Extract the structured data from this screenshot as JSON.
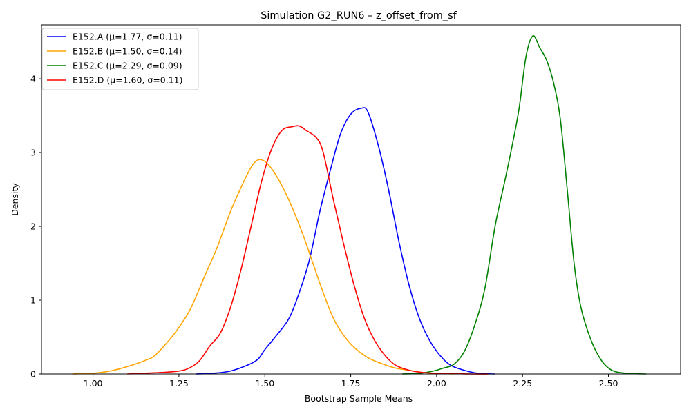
{
  "chart_data": {
    "type": "line",
    "title": "Simulation G2_RUN6 – z_offset_from_sf",
    "xlabel": "Bootstrap Sample Means",
    "ylabel": "Density",
    "xlim": [
      0.85,
      2.71
    ],
    "ylim": [
      0,
      4.73
    ],
    "xticks": [
      1.0,
      1.25,
      1.5,
      1.75,
      2.0,
      2.25,
      2.5
    ],
    "xtick_labels": [
      "1.00",
      "1.25",
      "1.50",
      "1.75",
      "2.00",
      "2.25",
      "2.50"
    ],
    "yticks": [
      0,
      1,
      2,
      3,
      4
    ],
    "ytick_labels": [
      "0",
      "1",
      "2",
      "3",
      "4"
    ],
    "grid": false,
    "legend_position": "top-left",
    "series": [
      {
        "name": "E152.A (μ=1.77, σ=0.11)",
        "color": "#0000ff",
        "x": [
          1.3,
          1.35,
          1.4,
          1.45,
          1.48,
          1.5,
          1.53,
          1.57,
          1.6,
          1.63,
          1.66,
          1.69,
          1.72,
          1.75,
          1.78,
          1.8,
          1.83,
          1.86,
          1.89,
          1.92,
          1.95,
          1.98,
          2.01,
          2.04,
          2.08,
          2.12,
          2.17
        ],
        "y": [
          0.0,
          0.01,
          0.04,
          0.12,
          0.2,
          0.33,
          0.5,
          0.75,
          1.1,
          1.55,
          2.2,
          2.75,
          3.25,
          3.52,
          3.6,
          3.55,
          3.1,
          2.5,
          1.8,
          1.2,
          0.75,
          0.45,
          0.25,
          0.12,
          0.05,
          0.01,
          0.0
        ]
      },
      {
        "name": "E152.B (μ=1.50, σ=0.14)",
        "color": "#ffa500",
        "x": [
          0.94,
          1.0,
          1.05,
          1.1,
          1.15,
          1.18,
          1.22,
          1.25,
          1.28,
          1.3,
          1.33,
          1.36,
          1.4,
          1.43,
          1.46,
          1.48,
          1.5,
          1.52,
          1.55,
          1.58,
          1.61,
          1.64,
          1.67,
          1.7,
          1.73,
          1.76,
          1.8,
          1.84,
          1.88,
          1.92,
          1.96,
          2.0,
          2.05
        ],
        "y": [
          0.0,
          0.01,
          0.04,
          0.1,
          0.18,
          0.25,
          0.45,
          0.63,
          0.85,
          1.05,
          1.38,
          1.7,
          2.2,
          2.52,
          2.8,
          2.9,
          2.88,
          2.78,
          2.55,
          2.25,
          1.9,
          1.5,
          1.1,
          0.75,
          0.52,
          0.36,
          0.22,
          0.14,
          0.08,
          0.05,
          0.02,
          0.01,
          0.0
        ]
      },
      {
        "name": "E152.C (μ=2.29, σ=0.09)",
        "color": "#008000",
        "x": [
          1.9,
          1.95,
          1.99,
          2.02,
          2.05,
          2.08,
          2.11,
          2.14,
          2.17,
          2.2,
          2.22,
          2.24,
          2.26,
          2.28,
          2.3,
          2.32,
          2.34,
          2.36,
          2.38,
          2.4,
          2.42,
          2.45,
          2.48,
          2.51,
          2.55,
          2.61
        ],
        "y": [
          0.0,
          0.01,
          0.04,
          0.08,
          0.13,
          0.3,
          0.65,
          1.15,
          2.0,
          2.65,
          3.1,
          3.6,
          4.3,
          4.58,
          4.42,
          4.25,
          3.95,
          3.45,
          2.5,
          1.5,
          0.9,
          0.45,
          0.18,
          0.05,
          0.01,
          0.0
        ]
      },
      {
        "name": "E152.D (μ=1.60, σ=0.11)",
        "color": "#ff0000",
        "x": [
          1.1,
          1.15,
          1.2,
          1.25,
          1.28,
          1.31,
          1.34,
          1.37,
          1.4,
          1.43,
          1.46,
          1.49,
          1.52,
          1.55,
          1.58,
          1.6,
          1.62,
          1.65,
          1.67,
          1.7,
          1.73,
          1.76,
          1.79,
          1.82,
          1.85,
          1.88,
          1.92,
          1.96,
          2.0,
          2.05,
          2.1,
          2.15
        ],
        "y": [
          0.0,
          0.01,
          0.02,
          0.04,
          0.08,
          0.18,
          0.38,
          0.55,
          0.9,
          1.4,
          2.0,
          2.6,
          3.05,
          3.3,
          3.35,
          3.36,
          3.3,
          3.2,
          3.0,
          2.35,
          1.75,
          1.2,
          0.75,
          0.45,
          0.25,
          0.12,
          0.05,
          0.02,
          0.01,
          0.005,
          0.0,
          0.0
        ]
      }
    ]
  }
}
